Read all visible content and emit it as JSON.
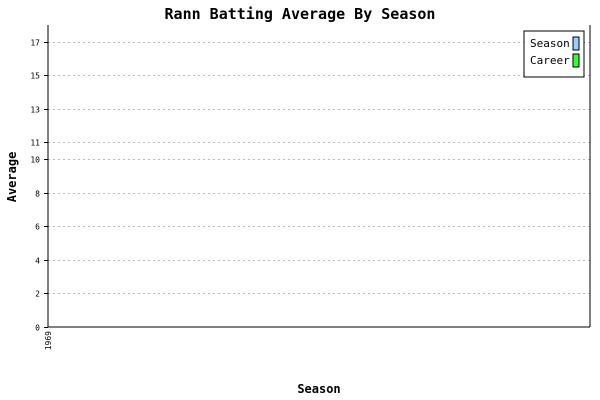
{
  "chart_data": {
    "type": "bar",
    "title": "Rann Batting Average By Season",
    "xlabel": "Season",
    "ylabel": "Average",
    "categories": [
      "1969"
    ],
    "series": [
      {
        "name": "Season",
        "values": [
          0
        ],
        "color": "#99ccff"
      },
      {
        "name": "Career",
        "values": [
          0
        ],
        "color": "#33ff33"
      }
    ],
    "ylim": [
      0,
      18
    ],
    "yticks": [
      0,
      2,
      4,
      6,
      8,
      10,
      11,
      13,
      15,
      17
    ],
    "grid": true,
    "legend_position": "top-right"
  }
}
